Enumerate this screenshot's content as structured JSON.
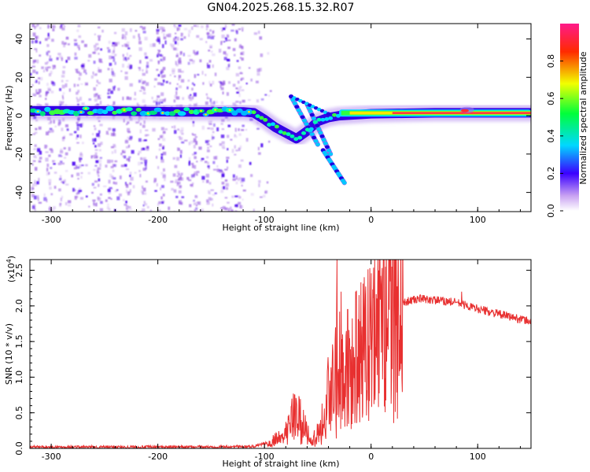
{
  "title": "GN04.2025.268.15.32.R07",
  "chart_data": [
    {
      "type": "heatmap",
      "name": "spectrogram",
      "xlabel": "Height of straight line (km)",
      "ylabel": "Frequency (Hz)",
      "xlim": [
        -320,
        150
      ],
      "ylim": [
        -50,
        48
      ],
      "xticks": [
        -300,
        -200,
        -100,
        0,
        100
      ],
      "xtick_labels": [
        "-300",
        "-200",
        "-100",
        "0",
        "100"
      ],
      "yticks": [
        -40,
        -20,
        0,
        20,
        40
      ],
      "ytick_labels": [
        "-40",
        "-20",
        "0",
        "20",
        "40"
      ],
      "colorbar": {
        "label": "Normalized spectral amplitude",
        "range": [
          0,
          1
        ],
        "ticks": [
          0.0,
          0.2,
          0.4,
          0.6,
          0.8
        ],
        "tick_labels": [
          "0.0",
          "0.2",
          "0.4",
          "0.6",
          "0.8"
        ]
      },
      "ridge": [
        {
          "x": -320,
          "f": 2.5
        },
        {
          "x": -250,
          "f": 2.5
        },
        {
          "x": -180,
          "f": 2.0
        },
        {
          "x": -120,
          "f": 2.0
        },
        {
          "x": -110,
          "f": 1.5
        },
        {
          "x": -100,
          "f": -2.0
        },
        {
          "x": -90,
          "f": -6.0
        },
        {
          "x": -80,
          "f": -9.0
        },
        {
          "x": -70,
          "f": -12.0
        },
        {
          "x": -60,
          "f": -8.0
        },
        {
          "x": -50,
          "f": -3.0
        },
        {
          "x": -40,
          "f": -1.0
        },
        {
          "x": -30,
          "f": 0.0
        },
        {
          "x": 0,
          "f": 1.0
        },
        {
          "x": 60,
          "f": 1.5
        },
        {
          "x": 100,
          "f": 1.5
        },
        {
          "x": 150,
          "f": 1.5
        }
      ],
      "side_branches": [
        {
          "x": [
            -75,
            -50
          ],
          "f": [
            10,
            -15
          ]
        },
        {
          "x": [
            -60,
            -38
          ],
          "f": [
            6,
            -20
          ]
        },
        {
          "x": [
            -45,
            -25
          ],
          "f": [
            -18,
            -35
          ]
        }
      ]
    },
    {
      "type": "line",
      "name": "snr",
      "xlabel": "Height of straight line (km)",
      "ylabel": "SNR (10 * v/v)",
      "y_scale_label": "(x10",
      "y_scale_exponent": "4",
      "xlim": [
        -320,
        150
      ],
      "ylim": [
        0,
        2.65
      ],
      "xticks": [
        -300,
        -200,
        -100,
        0,
        100
      ],
      "xtick_labels": [
        "-300",
        "-200",
        "-100",
        "0",
        "100"
      ],
      "yticks": [
        0.0,
        0.5,
        1.0,
        1.5,
        2.0,
        2.5
      ],
      "ytick_labels": [
        "0.0",
        "0.5",
        "1.0",
        "1.5",
        "2.0",
        "2.5"
      ],
      "series_color": "#e83030",
      "envelope": [
        {
          "x": -320,
          "y": 0.02
        },
        {
          "x": -150,
          "y": 0.02
        },
        {
          "x": -110,
          "y": 0.03
        },
        {
          "x": -95,
          "y": 0.08
        },
        {
          "x": -80,
          "y": 0.25
        },
        {
          "x": -70,
          "y": 0.55
        },
        {
          "x": -65,
          "y": 0.35
        },
        {
          "x": -55,
          "y": 0.1
        },
        {
          "x": -48,
          "y": 0.3
        },
        {
          "x": -40,
          "y": 0.8
        },
        {
          "x": -32,
          "y": 1.3
        },
        {
          "x": -25,
          "y": 1.1
        },
        {
          "x": -15,
          "y": 1.3
        },
        {
          "x": -5,
          "y": 1.4
        },
        {
          "x": 5,
          "y": 1.6
        },
        {
          "x": 15,
          "y": 1.9
        },
        {
          "x": 30,
          "y": 2.05
        },
        {
          "x": 45,
          "y": 2.1
        },
        {
          "x": 60,
          "y": 2.08
        },
        {
          "x": 80,
          "y": 2.05
        },
        {
          "x": 95,
          "y": 1.98
        },
        {
          "x": 110,
          "y": 1.92
        },
        {
          "x": 130,
          "y": 1.85
        },
        {
          "x": 150,
          "y": 1.78
        }
      ],
      "peaks": [
        {
          "x": -70,
          "y": 0.68
        },
        {
          "x": -32,
          "y": 2.65
        },
        {
          "x": -28,
          "y": 2.2
        },
        {
          "x": -22,
          "y": 1.95
        },
        {
          "x": 10,
          "y": 2.3
        },
        {
          "x": 85,
          "y": 2.2
        }
      ]
    }
  ]
}
